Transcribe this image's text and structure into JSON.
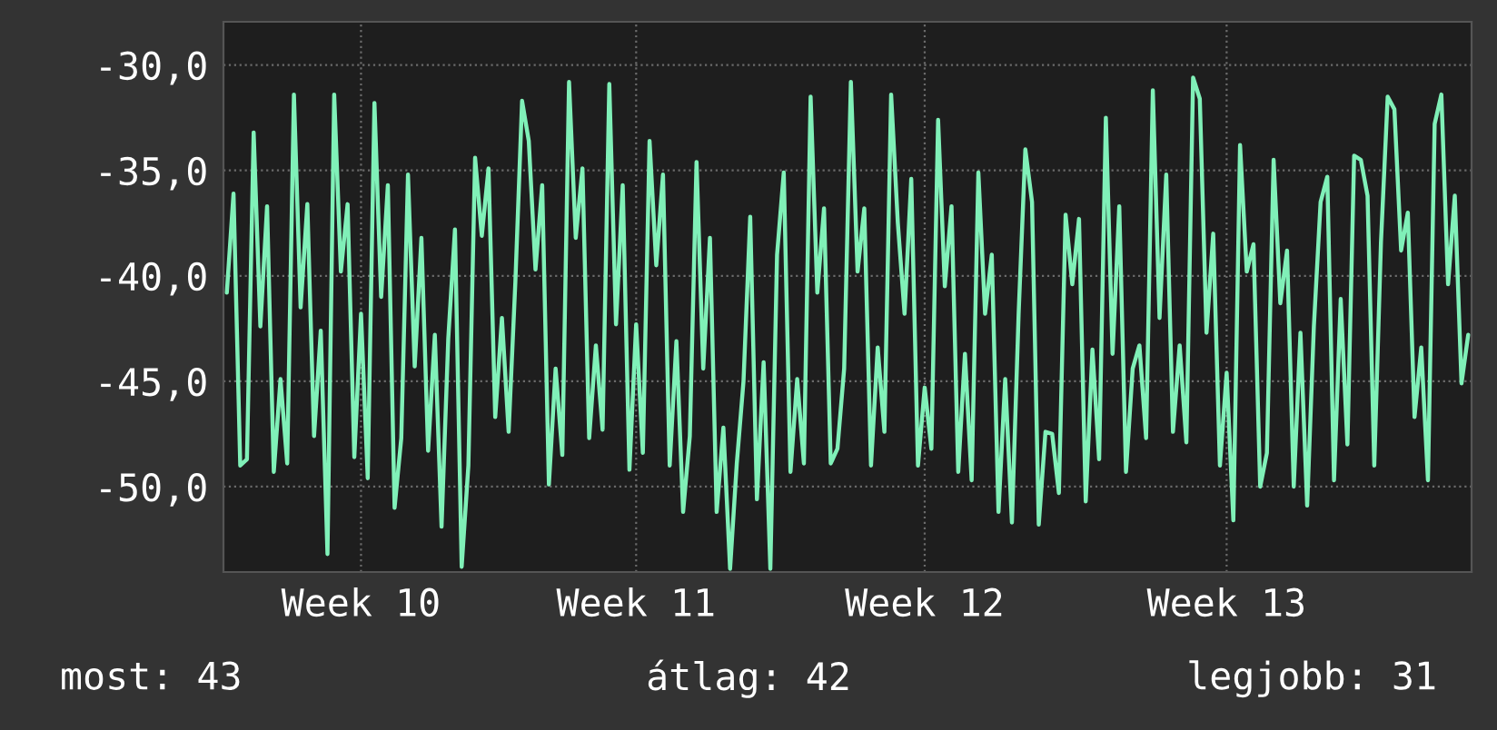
{
  "chart_data": {
    "type": "line",
    "ylim": [
      -54.05,
      -27.95
    ],
    "categories": [
      null,
      null,
      null,
      null,
      null,
      null,
      null,
      null,
      null,
      null,
      null,
      null,
      null,
      null,
      null,
      null,
      null,
      null,
      null,
      null,
      "Week 10",
      null,
      null,
      null,
      null,
      null,
      null,
      null,
      null,
      null,
      null,
      null,
      null,
      null,
      null,
      null,
      null,
      null,
      null,
      null,
      null,
      null,
      null,
      null,
      null,
      null,
      null,
      null,
      null,
      null,
      null,
      null,
      null,
      null,
      null,
      null,
      null,
      null,
      null,
      null,
      null,
      "Week 11",
      null,
      null,
      null,
      null,
      null,
      null,
      null,
      null,
      null,
      null,
      null,
      null,
      null,
      null,
      null,
      null,
      null,
      null,
      null,
      null,
      null,
      null,
      null,
      null,
      null,
      null,
      null,
      null,
      null,
      null,
      null,
      null,
      null,
      null,
      null,
      null,
      null,
      null,
      null,
      null,
      null,
      null,
      "Week 12",
      null,
      null,
      null,
      null,
      null,
      null,
      null,
      null,
      null,
      null,
      null,
      null,
      null,
      null,
      null,
      null,
      null,
      null,
      null,
      null,
      null,
      null,
      null,
      null,
      null,
      null,
      null,
      null,
      null,
      null,
      null,
      null,
      null,
      null,
      null,
      null,
      null,
      null,
      null,
      null,
      null,
      null,
      null,
      null,
      "Week 13",
      null,
      null,
      null,
      null,
      null,
      null,
      null,
      null,
      null,
      null,
      null,
      null,
      null,
      null,
      null,
      null,
      null,
      null,
      null,
      null,
      null,
      null,
      null,
      null,
      null,
      null,
      null,
      null,
      null,
      null,
      null,
      null,
      null,
      null,
      null,
      null
    ],
    "yticks": [
      {
        "value": -30,
        "label": "-30,0"
      },
      {
        "value": -35,
        "label": "-35,0"
      },
      {
        "value": -40,
        "label": "-40,0"
      },
      {
        "value": -45,
        "label": "-45,0"
      },
      {
        "value": -50,
        "label": "-50,0"
      }
    ],
    "grid": true,
    "marker": "none",
    "line_style": "solid",
    "annotations": [
      "most: 43",
      "átlag: 42",
      "legjobb: 31"
    ],
    "series": [
      {
        "color": "#80f0b8",
        "values": [
          -40.8,
          -36.1,
          -49.0,
          -48.7,
          -33.2,
          -42.4,
          -36.7,
          -49.3,
          -44.9,
          -48.9,
          -31.4,
          -41.5,
          -36.6,
          -47.6,
          -42.6,
          -53.2,
          -31.4,
          -39.8,
          -36.6,
          -48.6,
          -41.8,
          -49.6,
          -31.8,
          -41.0,
          -35.7,
          -51.0,
          -47.7,
          -35.2,
          -44.3,
          -38.2,
          -48.3,
          -42.8,
          -51.9,
          -43.0,
          -37.8,
          -53.8,
          -49.0,
          -34.4,
          -38.1,
          -34.9,
          -46.7,
          -42.0,
          -47.4,
          -40.3,
          -31.7,
          -33.6,
          -39.7,
          -35.7,
          -49.9,
          -44.4,
          -48.5,
          -30.8,
          -38.2,
          -34.9,
          -47.7,
          -43.3,
          -47.3,
          -30.9,
          -42.3,
          -35.7,
          -49.2,
          -42.3,
          -48.4,
          -33.6,
          -39.5,
          -35.2,
          -49.0,
          -43.1,
          -51.2,
          -47.6,
          -34.6,
          -44.4,
          -38.2,
          -51.2,
          -47.2,
          -53.9,
          -48.9,
          -45.0,
          -37.2,
          -50.6,
          -44.1,
          -53.9,
          -39.0,
          -35.1,
          -49.3,
          -44.9,
          -48.9,
          -31.5,
          -40.8,
          -36.8,
          -48.9,
          -48.2,
          -44.4,
          -30.8,
          -39.8,
          -36.8,
          -49.0,
          -43.4,
          -47.4,
          -31.4,
          -37.5,
          -41.8,
          -35.4,
          -49.0,
          -45.3,
          -48.2,
          -32.6,
          -40.5,
          -36.7,
          -49.3,
          -43.7,
          -49.7,
          -35.1,
          -41.8,
          -39.0,
          -51.2,
          -44.9,
          -51.7,
          -41.8,
          -34.0,
          -36.5,
          -51.8,
          -47.4,
          -47.5,
          -50.3,
          -37.1,
          -40.4,
          -37.3,
          -50.7,
          -43.5,
          -48.7,
          -32.5,
          -43.7,
          -36.7,
          -49.3,
          -44.4,
          -43.3,
          -47.7,
          -31.2,
          -42.0,
          -35.2,
          -47.4,
          -43.3,
          -47.9,
          -30.6,
          -31.6,
          -42.7,
          -38.0,
          -49.0,
          -44.6,
          -51.6,
          -33.8,
          -39.8,
          -38.5,
          -50.0,
          -48.4,
          -34.5,
          -41.3,
          -38.8,
          -50.0,
          -42.7,
          -50.9,
          -42.4,
          -36.5,
          -35.3,
          -49.7,
          -41.1,
          -48.0,
          -34.3,
          -34.5,
          -36.2,
          -49.0,
          -38.4,
          -31.5,
          -32.1,
          -38.8,
          -37.0,
          -46.7,
          -43.4,
          -49.7,
          -32.8,
          -31.4,
          -40.4,
          -36.2,
          -45.1,
          -42.8
        ]
      }
    ]
  }
}
